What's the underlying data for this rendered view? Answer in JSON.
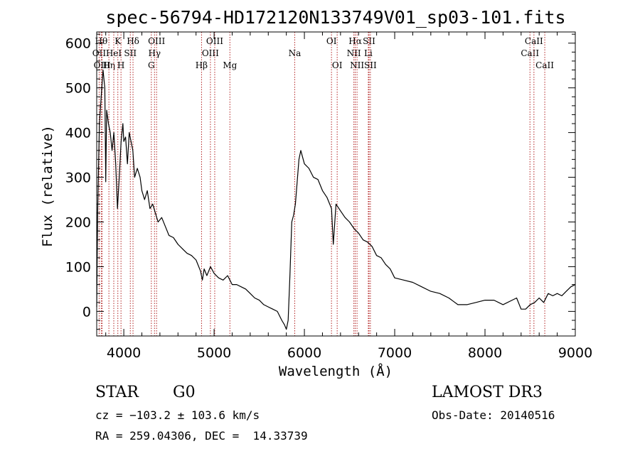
{
  "chart_data": {
    "type": "line",
    "title": "spec-56794-HD172120N133749V01_sp03-101.fits",
    "xlabel": "Wavelength (Å)",
    "ylabel": "Flux (relative)",
    "xlim": [
      3700,
      9000
    ],
    "ylim": [
      -55,
      625
    ],
    "x_ticks": [
      4000,
      5000,
      6000,
      7000,
      8000,
      9000
    ],
    "y_ticks": [
      0,
      100,
      200,
      300,
      400,
      500,
      600
    ],
    "grid": false,
    "series": [
      {
        "x": [
          3700,
          3710,
          3730,
          3750,
          3770,
          3790,
          3800,
          3810,
          3830,
          3850,
          3870,
          3890,
          3910,
          3930,
          3950,
          3970,
          3990,
          4000,
          4020,
          4040,
          4060,
          4080,
          4100,
          4120,
          4150,
          4180,
          4200,
          4230,
          4260,
          4290,
          4320,
          4350,
          4380,
          4420,
          4460,
          4500,
          4550,
          4600,
          4650,
          4700,
          4750,
          4800,
          4850,
          4870,
          4890,
          4920,
          4960,
          5000,
          5050,
          5100,
          5150,
          5200,
          5250,
          5300,
          5350,
          5400,
          5450,
          5500,
          5550,
          5600,
          5650,
          5700,
          5750,
          5780,
          5800,
          5820,
          5840,
          5860,
          5880,
          5900,
          5920,
          5940,
          5960,
          5980,
          6000,
          6050,
          6100,
          6150,
          6200,
          6250,
          6300,
          6320,
          6350,
          6400,
          6450,
          6500,
          6550,
          6600,
          6650,
          6700,
          6750,
          6800,
          6850,
          6900,
          6950,
          7000,
          7100,
          7200,
          7300,
          7400,
          7500,
          7600,
          7700,
          7800,
          7900,
          8000,
          8100,
          8200,
          8300,
          8350,
          8400,
          8450,
          8500,
          8550,
          8600,
          8650,
          8700,
          8750,
          8800,
          8850,
          8900,
          8950,
          9000
        ],
        "y": [
          10,
          220,
          420,
          480,
          540,
          500,
          290,
          450,
          420,
          400,
          360,
          400,
          330,
          230,
          300,
          380,
          420,
          380,
          390,
          330,
          400,
          380,
          360,
          300,
          320,
          300,
          270,
          250,
          270,
          230,
          240,
          220,
          200,
          210,
          190,
          170,
          165,
          150,
          140,
          130,
          125,
          115,
          90,
          70,
          95,
          80,
          100,
          85,
          75,
          70,
          80,
          60,
          60,
          55,
          50,
          40,
          30,
          25,
          15,
          10,
          5,
          0,
          -20,
          -30,
          -40,
          -20,
          80,
          200,
          215,
          240,
          290,
          340,
          360,
          345,
          330,
          320,
          300,
          295,
          270,
          255,
          230,
          150,
          240,
          225,
          210,
          200,
          185,
          175,
          160,
          155,
          145,
          125,
          120,
          105,
          95,
          75,
          70,
          65,
          55,
          45,
          40,
          30,
          15,
          15,
          20,
          25,
          25,
          15,
          25,
          30,
          5,
          5,
          15,
          20,
          30,
          20,
          40,
          35,
          40,
          35,
          45,
          55,
          60
        ]
      }
    ],
    "spectral_lines": [
      {
        "label": "OII",
        "x": 3727,
        "row": 1
      },
      {
        "label": "Hθ",
        "x": 3750,
        "row": 0
      },
      {
        "label": "OIII",
        "x": 3760,
        "row": 2
      },
      {
        "label": "Hη",
        "x": 3835,
        "row": 2
      },
      {
        "label": "HeI",
        "x": 3889,
        "row": 1
      },
      {
        "label": "K",
        "x": 3934,
        "row": 0
      },
      {
        "label": "SII",
        "x": 4072,
        "row": 1
      },
      {
        "label": "H",
        "x": 3969,
        "row": 2
      },
      {
        "label": "Hδ",
        "x": 4102,
        "row": 0
      },
      {
        "label": "G",
        "x": 4305,
        "row": 2
      },
      {
        "label": "Hγ",
        "x": 4340,
        "row": 1
      },
      {
        "label": "OIII",
        "x": 4363,
        "row": 0
      },
      {
        "label": "Hβ",
        "x": 4861,
        "row": 2
      },
      {
        "label": "OIII",
        "x": 4959,
        "row": 1
      },
      {
        "label": "OIII",
        "x": 5007,
        "row": 0
      },
      {
        "label": "Mg",
        "x": 5175,
        "row": 2
      },
      {
        "label": "Na",
        "x": 5893,
        "row": 1
      },
      {
        "label": "OI",
        "x": 6300,
        "row": 0
      },
      {
        "label": "OI",
        "x": 6363,
        "row": 2
      },
      {
        "label": "NII",
        "x": 6548,
        "row": 1
      },
      {
        "label": "Hα",
        "x": 6563,
        "row": 0
      },
      {
        "label": "NII",
        "x": 6583,
        "row": 2
      },
      {
        "label": "SII",
        "x": 6716,
        "row": 0
      },
      {
        "label": "Li",
        "x": 6708,
        "row": 1
      },
      {
        "label": "SII",
        "x": 6731,
        "row": 2
      },
      {
        "label": "CaII",
        "x": 8498,
        "row": 1
      },
      {
        "label": "CaII",
        "x": 8542,
        "row": 0
      },
      {
        "label": "CaII",
        "x": 8662,
        "row": 2
      }
    ]
  },
  "info": {
    "class_label": "STAR",
    "subclass": "G0",
    "survey": "LAMOST DR3",
    "cz": "cz = −103.2 ± 103.6 km/s",
    "obs_date": "Obs-Date: 20140516",
    "coords": "RA = 259.04306, DEC =  14.33739"
  }
}
